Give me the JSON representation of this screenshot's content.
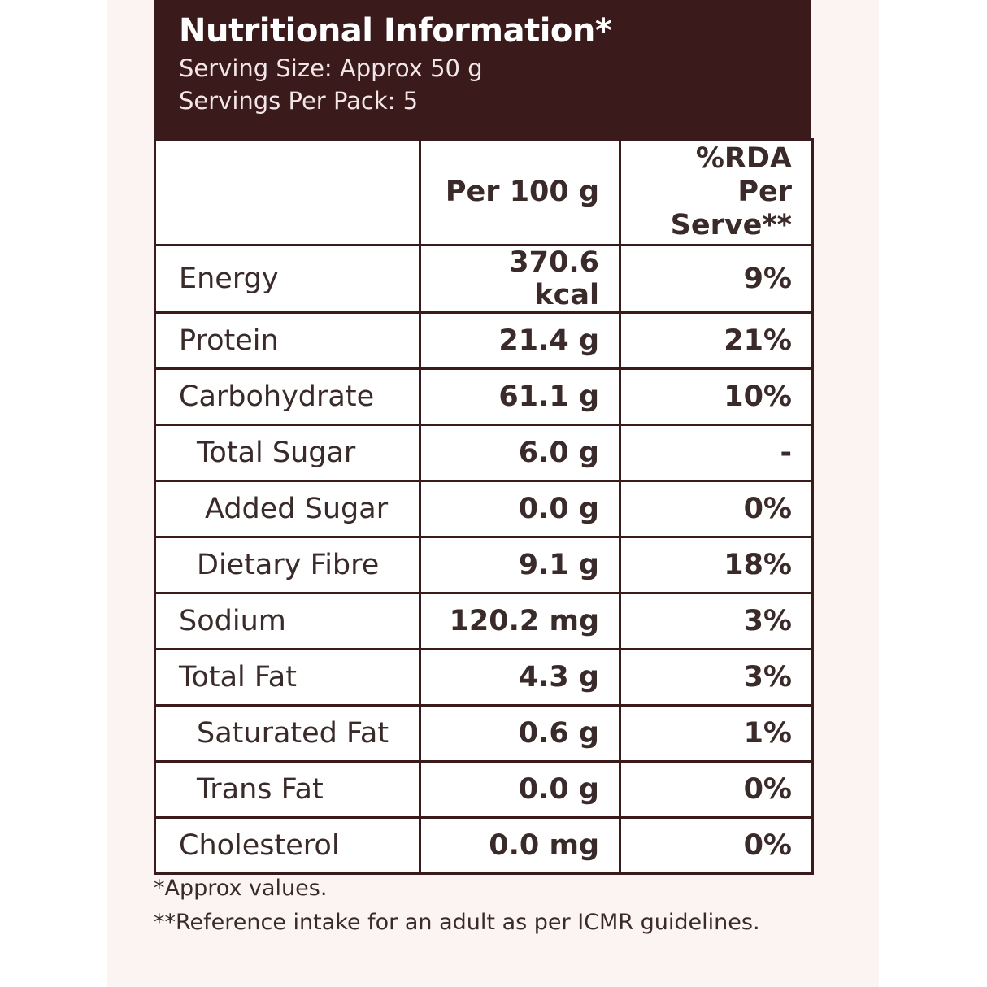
{
  "header": {
    "title": "Nutritional Information*",
    "serving_size": "Serving Size: Approx 50 g",
    "servings_per_pack": "Servings Per Pack: 5"
  },
  "table": {
    "columns": [
      "",
      "Per 100 g",
      "%RDA Per Serve**"
    ],
    "rows": [
      {
        "name": "Energy",
        "per100": "370.6 kcal",
        "rda": "9%",
        "indent": 0
      },
      {
        "name": "Protein",
        "per100": "21.4 g",
        "rda": "21%",
        "indent": 0
      },
      {
        "name": "Carbohydrate",
        "per100": "61.1 g",
        "rda": "10%",
        "indent": 0
      },
      {
        "name": "Total Sugar",
        "per100": "6.0 g",
        "rda": "-",
        "indent": 1
      },
      {
        "name": "Added Sugar",
        "per100": "0.0 g",
        "rda": "0%",
        "indent": 2
      },
      {
        "name": "Dietary Fibre",
        "per100": "9.1 g",
        "rda": "18%",
        "indent": 1
      },
      {
        "name": "Sodium",
        "per100": "120.2 mg",
        "rda": "3%",
        "indent": 0
      },
      {
        "name": "Total Fat",
        "per100": "4.3 g",
        "rda": "3%",
        "indent": 0
      },
      {
        "name": "Saturated Fat",
        "per100": "0.6 g",
        "rda": "1%",
        "indent": 1
      },
      {
        "name": "Trans Fat",
        "per100": "0.0 g",
        "rda": "0%",
        "indent": 1
      },
      {
        "name": "Cholesterol",
        "per100": "0.0 mg",
        "rda": "0%",
        "indent": 0
      }
    ]
  },
  "notes": {
    "approx": "*Approx values.",
    "reference": "**Reference intake for an adult as per ICMR guidelines."
  },
  "colors": {
    "header_bg": "#3a1a1b",
    "panel_bg": "#fcf4f2",
    "text": "#3a2a2a"
  }
}
